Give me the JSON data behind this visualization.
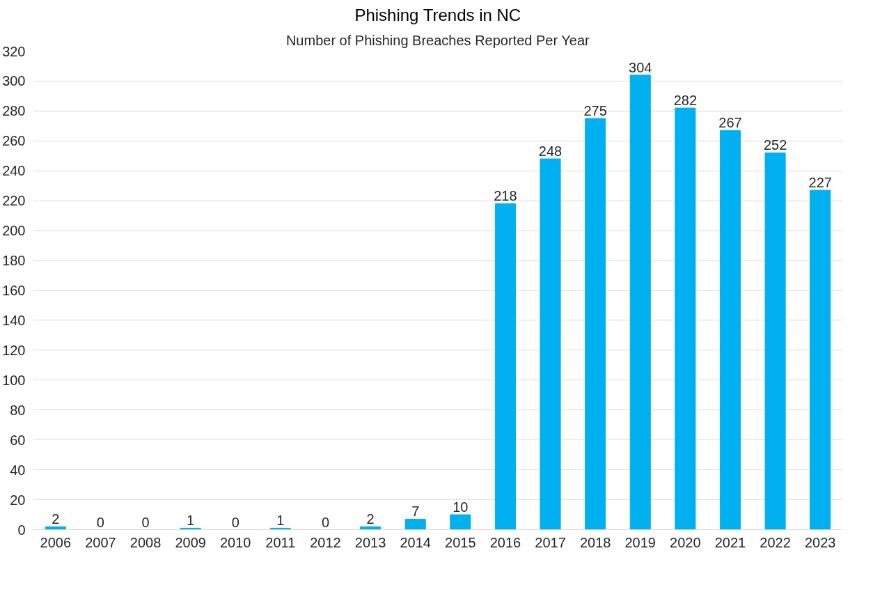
{
  "chart_data": {
    "type": "bar",
    "title": "Phishing Trends in NC",
    "subtitle": "Number of Phishing Breaches Reported Per Year",
    "categories": [
      "2006",
      "2007",
      "2008",
      "2009",
      "2010",
      "2011",
      "2012",
      "2013",
      "2014",
      "2015",
      "2016",
      "2017",
      "2018",
      "2019",
      "2020",
      "2021",
      "2022",
      "2023"
    ],
    "values": [
      2,
      0,
      0,
      1,
      0,
      1,
      0,
      2,
      7,
      10,
      218,
      248,
      275,
      304,
      282,
      267,
      252,
      227
    ],
    "color": "#00b0f0",
    "ylim": [
      0,
      320
    ],
    "yticks": [
      0,
      20,
      40,
      60,
      80,
      100,
      120,
      140,
      160,
      180,
      200,
      220,
      240,
      260,
      280,
      300,
      320
    ],
    "grid": "y",
    "data_labels": true
  }
}
